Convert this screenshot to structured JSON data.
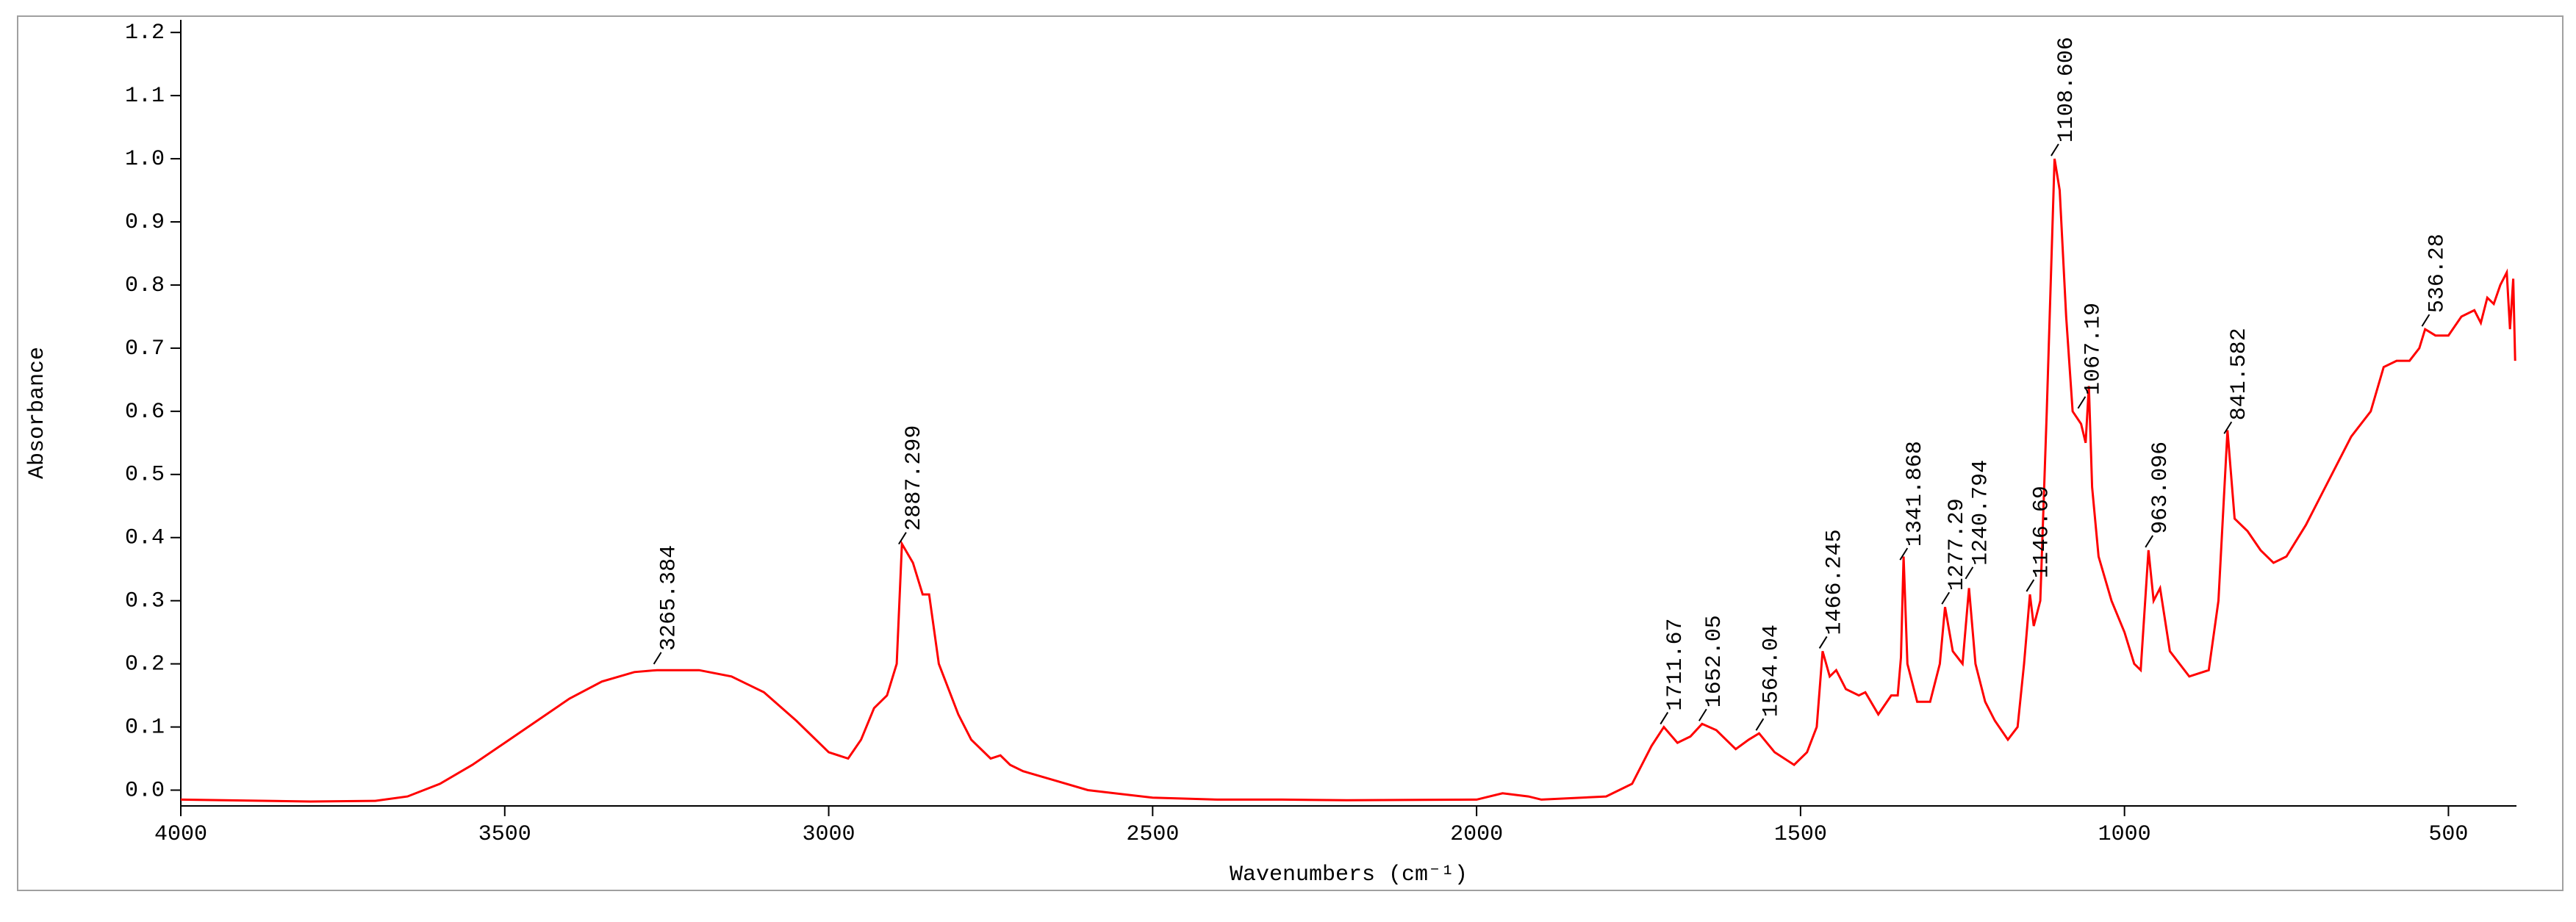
{
  "chart_data": {
    "type": "line",
    "xlabel": "Wavenumbers (cm⁻¹)",
    "ylabel": "Absorbance",
    "color": "#ff0000",
    "xlim": [
      4000,
      395
    ],
    "ylim": [
      -0.025,
      1.22
    ],
    "xticks": [
      4000,
      3500,
      3000,
      2500,
      2000,
      1500,
      1000,
      500
    ],
    "yticks": [
      {
        "value": 0,
        "label": "0.0"
      },
      0.1,
      0.2,
      0.3,
      0.4,
      0.5,
      0.6,
      0.7,
      0.8,
      0.9,
      {
        "value": 1,
        "label": "1.0"
      },
      1.1,
      1.2
    ],
    "x": [
      4000,
      3800,
      3700,
      3650,
      3600,
      3550,
      3500,
      3450,
      3400,
      3350,
      3300,
      3265,
      3200,
      3150,
      3100,
      3050,
      3000,
      2970,
      2950,
      2930,
      2910,
      2895,
      2887,
      2870,
      2855,
      2845,
      2830,
      2800,
      2780,
      2750,
      2735,
      2720,
      2700,
      2650,
      2600,
      2500,
      2400,
      2300,
      2200,
      2000,
      1960,
      1920,
      1900,
      1800,
      1760,
      1730,
      1711,
      1690,
      1670,
      1652,
      1630,
      1600,
      1580,
      1564,
      1540,
      1510,
      1490,
      1475,
      1466,
      1455,
      1445,
      1430,
      1410,
      1400,
      1380,
      1360,
      1350,
      1345,
      1341,
      1335,
      1320,
      1300,
      1285,
      1277,
      1265,
      1250,
      1240,
      1230,
      1215,
      1200,
      1180,
      1165,
      1155,
      1146,
      1140,
      1130,
      1120,
      1108,
      1100,
      1090,
      1080,
      1067,
      1060,
      1055,
      1050,
      1040,
      1020,
      1000,
      985,
      975,
      963,
      955,
      945,
      930,
      900,
      870,
      855,
      841,
      830,
      810,
      790,
      770,
      750,
      720,
      690,
      650,
      620,
      600,
      580,
      560,
      545,
      536,
      520,
      500,
      480,
      460,
      450,
      440,
      430,
      420,
      410,
      405,
      400,
      397
    ],
    "values": [
      -0.015,
      -0.018,
      -0.017,
      -0.01,
      0.01,
      0.04,
      0.075,
      0.11,
      0.145,
      0.172,
      0.187,
      0.19,
      0.19,
      0.18,
      0.155,
      0.11,
      0.06,
      0.05,
      0.08,
      0.13,
      0.15,
      0.2,
      0.39,
      0.36,
      0.31,
      0.31,
      0.2,
      0.12,
      0.08,
      0.05,
      0.055,
      0.04,
      0.03,
      0.015,
      0.0,
      -0.012,
      -0.015,
      -0.015,
      -0.016,
      -0.015,
      -0.005,
      -0.01,
      -0.015,
      -0.01,
      0.01,
      0.07,
      0.1,
      0.075,
      0.085,
      0.105,
      0.095,
      0.065,
      0.08,
      0.09,
      0.06,
      0.04,
      0.06,
      0.1,
      0.22,
      0.18,
      0.19,
      0.16,
      0.15,
      0.155,
      0.12,
      0.15,
      0.15,
      0.21,
      0.37,
      0.2,
      0.14,
      0.14,
      0.2,
      0.29,
      0.22,
      0.2,
      0.32,
      0.2,
      0.14,
      0.11,
      0.08,
      0.1,
      0.2,
      0.31,
      0.26,
      0.3,
      0.6,
      1.0,
      0.95,
      0.75,
      0.6,
      0.58,
      0.55,
      0.64,
      0.48,
      0.37,
      0.3,
      0.25,
      0.2,
      0.19,
      0.38,
      0.3,
      0.32,
      0.22,
      0.18,
      0.19,
      0.3,
      0.57,
      0.43,
      0.41,
      0.38,
      0.36,
      0.37,
      0.42,
      0.48,
      0.56,
      0.6,
      0.67,
      0.68,
      0.68,
      0.7,
      0.73,
      0.72,
      0.72,
      0.75,
      0.76,
      0.74,
      0.78,
      0.77,
      0.8,
      0.82,
      0.73,
      0.81,
      0.68
    ],
    "peaks": [
      {
        "x": 3265.384,
        "y": 0.195
      },
      {
        "x": 2887.299,
        "y": 0.385
      },
      {
        "x": 1711.67,
        "y": 0.1
      },
      {
        "x": 1652.05,
        "y": 0.105
      },
      {
        "x": 1564.04,
        "y": 0.09
      },
      {
        "x": 1466.245,
        "y": 0.22
      },
      {
        "x": 1341.868,
        "y": 0.36
      },
      {
        "x": 1277.29,
        "y": 0.29
      },
      {
        "x": 1240.794,
        "y": 0.33
      },
      {
        "x": 1146.69,
        "y": 0.31
      },
      {
        "x": 1108.606,
        "y": 1.0
      },
      {
        "x": 1067.19,
        "y": 0.6
      },
      {
        "x": 963.096,
        "y": 0.38
      },
      {
        "x": 841.582,
        "y": 0.56
      },
      {
        "x": 536.28,
        "y": 0.73
      }
    ]
  }
}
